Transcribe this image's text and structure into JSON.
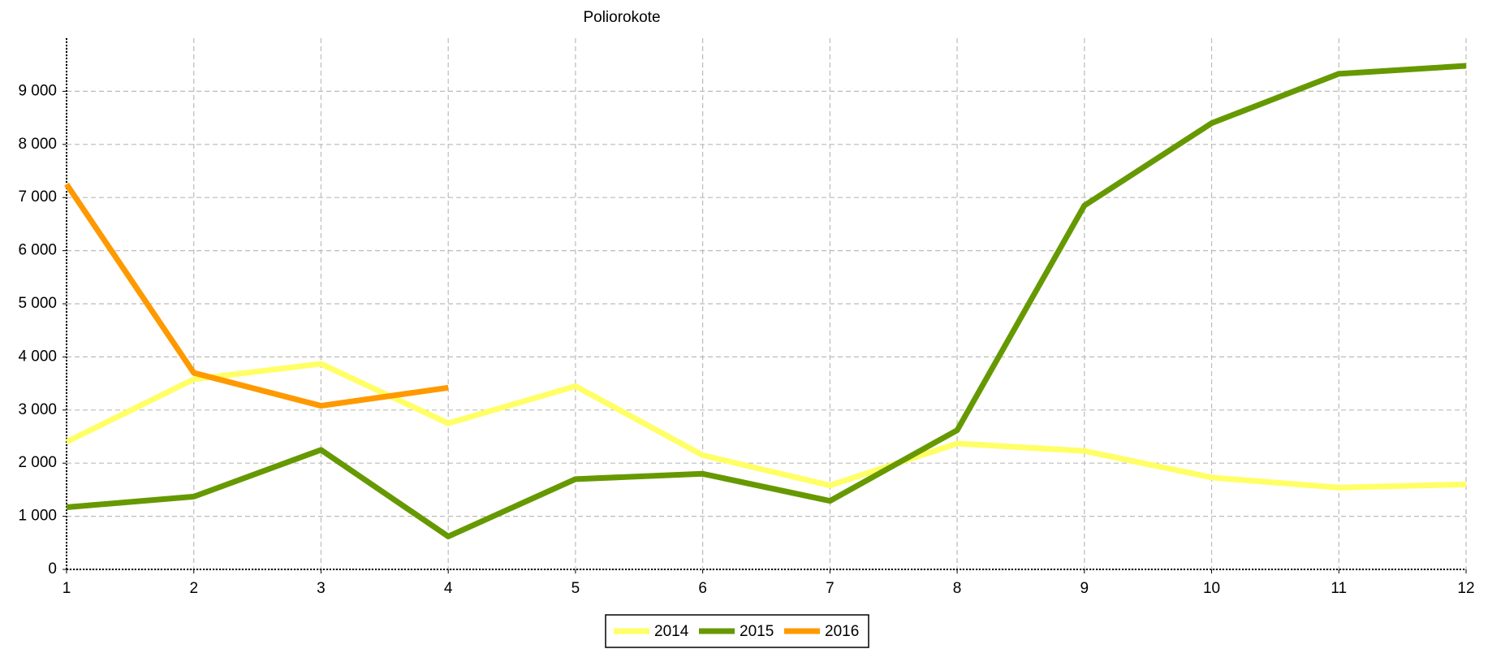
{
  "chart_data": {
    "type": "line",
    "title": "Poliorokote",
    "x": [
      1,
      2,
      3,
      4,
      5,
      6,
      7,
      8,
      9,
      10,
      11,
      12
    ],
    "series": [
      {
        "name": "2014",
        "color": "#ffff66",
        "values": [
          2400,
          3580,
          3870,
          2750,
          3450,
          2150,
          1580,
          2370,
          2230,
          1730,
          1540,
          1600
        ]
      },
      {
        "name": "2015",
        "color": "#669900",
        "values": [
          1170,
          1370,
          2250,
          620,
          1700,
          1800,
          1290,
          2620,
          6850,
          8400,
          9330,
          9480
        ]
      },
      {
        "name": "2016",
        "color": "#ff9900",
        "values": [
          7250,
          3700,
          3080,
          3420,
          null,
          null,
          null,
          null,
          null,
          null,
          null,
          null
        ]
      }
    ],
    "xlim": [
      1,
      12
    ],
    "xticks": [
      1,
      2,
      3,
      4,
      5,
      6,
      7,
      8,
      9,
      10,
      11,
      12
    ],
    "ylim": [
      0,
      10000
    ],
    "yticks": [
      0,
      {
        "value": 1000,
        "label": "1 000"
      },
      {
        "value": 2000,
        "label": "2 000"
      },
      {
        "value": 3000,
        "label": "3 000"
      },
      {
        "value": 4000,
        "label": "4 000"
      },
      {
        "value": 5000,
        "label": "5 000"
      },
      {
        "value": 6000,
        "label": "6 000"
      },
      {
        "value": 7000,
        "label": "7 000"
      },
      {
        "value": 8000,
        "label": "8 000"
      },
      {
        "value": 9000,
        "label": "9 000"
      }
    ],
    "grid": true,
    "legend": "bottom"
  }
}
